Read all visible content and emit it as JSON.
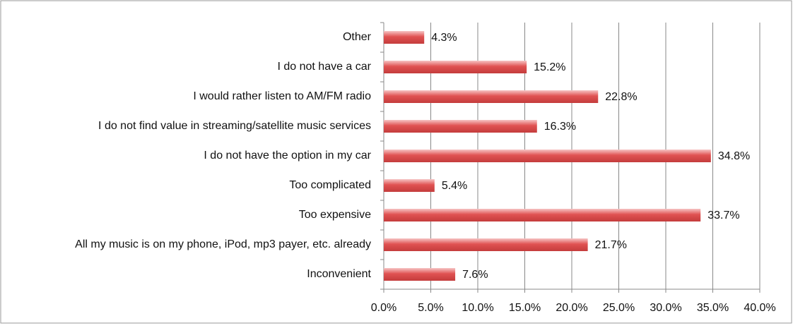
{
  "chart_data": {
    "type": "bar",
    "orientation": "horizontal",
    "categories": [
      "Other",
      "I do not have a car",
      "I would rather listen to AM/FM radio",
      "I do not find value in streaming/satellite music services",
      "I do not have the option in my car",
      "Too complicated",
      "Too expensive",
      "All my music is on my phone, iPod, mp3 payer, etc. already",
      "Inconvenient"
    ],
    "values": [
      4.3,
      15.2,
      22.8,
      16.3,
      34.8,
      5.4,
      33.7,
      21.7,
      7.6
    ],
    "value_labels": [
      "4.3%",
      "15.2%",
      "22.8%",
      "16.3%",
      "34.8%",
      "5.4%",
      "33.7%",
      "21.7%",
      "7.6%"
    ],
    "color": "#e05252",
    "xlim": [
      0,
      40
    ],
    "xticks": [
      {
        "value": 0,
        "label": "0.0%"
      },
      {
        "value": 5,
        "label": "5.0%"
      },
      {
        "value": 10,
        "label": "10.0%"
      },
      {
        "value": 15,
        "label": "15.0%"
      },
      {
        "value": 20,
        "label": "20.0%"
      },
      {
        "value": 25,
        "label": "25.0%"
      },
      {
        "value": 30,
        "label": "30.0%"
      },
      {
        "value": 35,
        "label": "35.0%"
      },
      {
        "value": 40,
        "label": "40.0%"
      }
    ],
    "grid": true
  }
}
